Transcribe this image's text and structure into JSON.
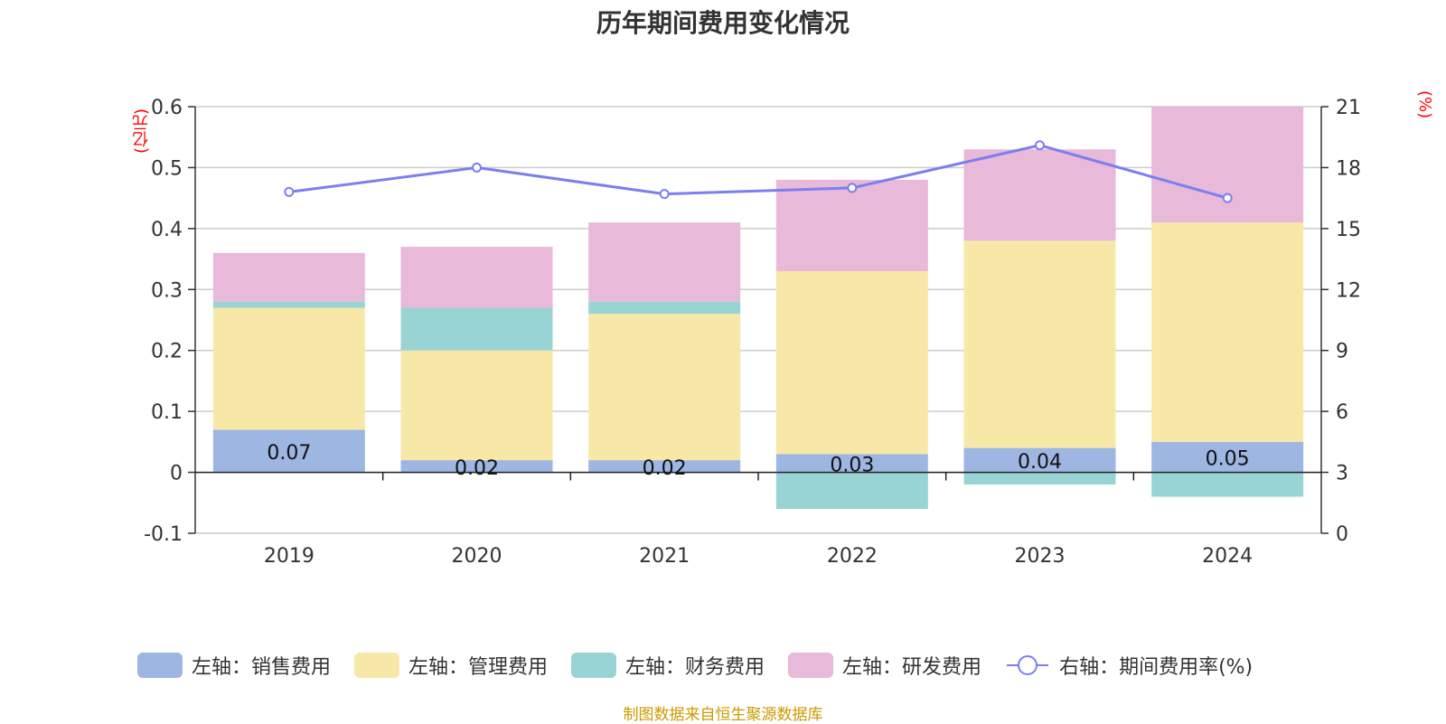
{
  "chart_data": {
    "type": "bar",
    "stacked": true,
    "title": "历年期间费用变化情况",
    "left_unit": "(亿元)",
    "right_unit": "(%)",
    "categories": [
      "2019",
      "2020",
      "2021",
      "2022",
      "2023",
      "2024"
    ],
    "left_axis": {
      "min": -0.1,
      "max": 0.6,
      "ticks": [
        "-0.1",
        "0",
        "0.1",
        "0.2",
        "0.3",
        "0.4",
        "0.5",
        "0.6"
      ]
    },
    "right_axis": {
      "min": 0,
      "max": 21,
      "ticks": [
        "0",
        "3",
        "6",
        "9",
        "12",
        "15",
        "18",
        "21"
      ]
    },
    "grid": true,
    "legend_position": "bottom",
    "series": [
      {
        "name": "左轴：销售费用",
        "axis": "left",
        "color": "#9db6e2",
        "values": [
          0.07,
          0.02,
          0.02,
          0.03,
          0.04,
          0.05
        ],
        "labels": [
          "0.07",
          "0.02",
          "0.02",
          "0.03",
          "0.04",
          "0.05"
        ]
      },
      {
        "name": "左轴：管理费用",
        "axis": "left",
        "color": "#f8e8a8",
        "values": [
          0.2,
          0.18,
          0.24,
          0.3,
          0.34,
          0.36
        ]
      },
      {
        "name": "左轴：财务费用",
        "axis": "left",
        "color": "#99d4d4",
        "values": [
          0.01,
          0.07,
          0.02,
          -0.06,
          -0.02,
          -0.04
        ]
      },
      {
        "name": "左轴：研发费用",
        "axis": "left",
        "color": "#e8b9d9",
        "values": [
          0.08,
          0.1,
          0.13,
          0.15,
          0.15,
          0.19
        ]
      },
      {
        "name": "右轴：期间费用率(%)",
        "axis": "right",
        "type": "line",
        "color": "#7b7ff0",
        "values": [
          16.8,
          18.0,
          16.7,
          17.0,
          19.1,
          16.5
        ]
      }
    ]
  },
  "source": "制图数据来自恒生聚源数据库"
}
